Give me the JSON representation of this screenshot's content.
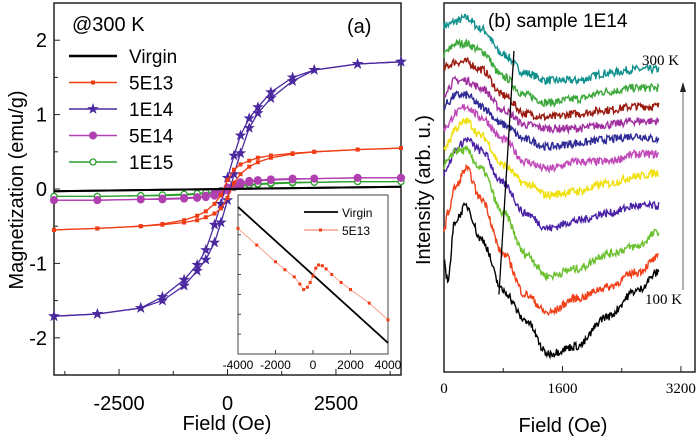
{
  "chart_data": [
    {
      "type": "line",
      "panel_label": "(a)",
      "annotation": "@300 K",
      "xlabel": "Field (Oe)",
      "ylabel": "Magnetization (emu/g)",
      "xlim": [
        -4000,
        4000
      ],
      "ylim": [
        -2.5,
        2.5
      ],
      "xticks": [
        -2500,
        0,
        2500
      ],
      "yticks": [
        -2,
        -1,
        0,
        1,
        2
      ],
      "xtick_labels": [
        "-2500",
        "0",
        "2500"
      ],
      "ytick_labels": [
        "-2",
        "-1",
        "0",
        "1",
        "2"
      ],
      "legend_position": "top-left",
      "x": [
        -4000,
        -3000,
        -2000,
        -1500,
        -1000,
        -700,
        -500,
        -300,
        -150,
        0,
        150,
        300,
        500,
        700,
        1000,
        1500,
        2000,
        3000,
        4000
      ],
      "series": [
        {
          "name": "Virgin",
          "color": "#000000",
          "marker": "none",
          "x": [
            -4000,
            4000
          ],
          "ascending": [
            -0.03,
            0.03
          ],
          "descending": [
            -0.03,
            0.03
          ]
        },
        {
          "name": "5E13",
          "color": "#f03c14",
          "marker": "square",
          "ascending": [
            -0.55,
            -0.53,
            -0.5,
            -0.48,
            -0.45,
            -0.42,
            -0.38,
            -0.33,
            -0.26,
            -0.12,
            0.08,
            0.2,
            0.3,
            0.36,
            0.42,
            0.47,
            0.5,
            0.53,
            0.55
          ],
          "descending": [
            -0.55,
            -0.53,
            -0.5,
            -0.47,
            -0.42,
            -0.36,
            -0.3,
            -0.2,
            -0.08,
            0.12,
            0.26,
            0.33,
            0.38,
            0.42,
            0.45,
            0.48,
            0.5,
            0.53,
            0.55
          ]
        },
        {
          "name": "1E14",
          "color": "#4b2aa0",
          "marker": "star",
          "ascending": [
            -1.71,
            -1.68,
            -1.6,
            -1.5,
            -1.3,
            -1.1,
            -0.95,
            -0.72,
            -0.45,
            -0.15,
            0.2,
            0.48,
            0.82,
            1.02,
            1.22,
            1.45,
            1.6,
            1.68,
            1.71
          ],
          "descending": [
            -1.71,
            -1.68,
            -1.6,
            -1.45,
            -1.22,
            -1.02,
            -0.82,
            -0.48,
            -0.2,
            0.15,
            0.45,
            0.72,
            0.95,
            1.1,
            1.3,
            1.5,
            1.6,
            1.68,
            1.71
          ]
        },
        {
          "name": "5E14",
          "color": "#b040b0",
          "marker": "circle",
          "ascending": [
            -0.15,
            -0.15,
            -0.14,
            -0.14,
            -0.13,
            -0.12,
            -0.11,
            -0.09,
            -0.06,
            -0.02,
            0.03,
            0.06,
            0.09,
            0.11,
            0.12,
            0.13,
            0.14,
            0.15,
            0.15
          ],
          "descending": [
            -0.15,
            -0.15,
            -0.14,
            -0.13,
            -0.12,
            -0.11,
            -0.09,
            -0.06,
            -0.03,
            0.02,
            0.06,
            0.09,
            0.11,
            0.12,
            0.13,
            0.14,
            0.14,
            0.15,
            0.15
          ]
        },
        {
          "name": "1E15",
          "color": "#2ea02e",
          "marker": "open-circle",
          "ascending": [
            -0.1,
            -0.1,
            -0.09,
            -0.09,
            -0.08,
            -0.07,
            -0.06,
            -0.05,
            -0.03,
            -0.01,
            0.02,
            0.04,
            0.05,
            0.06,
            0.07,
            0.08,
            0.09,
            0.1,
            0.1
          ],
          "descending": [
            -0.1,
            -0.1,
            -0.09,
            -0.08,
            -0.07,
            -0.06,
            -0.05,
            -0.04,
            -0.02,
            0.01,
            0.03,
            0.05,
            0.06,
            0.07,
            0.08,
            0.09,
            0.09,
            0.1,
            0.1
          ]
        }
      ],
      "inset": {
        "xlim": [
          -4000,
          4000
        ],
        "xtick_labels": [
          "-4000",
          "-2000",
          "0",
          "2000",
          "4000"
        ],
        "xticks": [
          -4000,
          -2000,
          0,
          2000,
          4000
        ],
        "ylim": [
          -1,
          1
        ],
        "legend_position": "top-right",
        "series": [
          {
            "name": "Virgin",
            "color": "#000000",
            "x": [
              -4000,
              4000
            ],
            "y": [
              0.85,
              -0.86
            ]
          },
          {
            "name": "5E13",
            "color": "#f03c14",
            "x": [
              -4000,
              -3000,
              -2000,
              -1500,
              -1000,
              -700,
              -500,
              -300,
              -150,
              0,
              150,
              300,
              500,
              700,
              1000,
              1500,
              2000,
              3000,
              4000
            ],
            "y": [
              0.58,
              0.37,
              0.16,
              0.06,
              -0.03,
              -0.12,
              -0.19,
              -0.16,
              -0.1,
              -0.02,
              0.08,
              0.12,
              0.11,
              0.07,
              0.0,
              -0.1,
              -0.19,
              -0.36,
              -0.57
            ]
          }
        ]
      }
    },
    {
      "type": "line",
      "title": "(b) sample 1E14",
      "xlabel": "Field (Oe)",
      "ylabel": "Intensity (arb. u.)",
      "xlim": [
        0,
        3390
      ],
      "ylim": [
        0,
        100
      ],
      "xticks": [
        0,
        1600,
        3200
      ],
      "xtick_labels": [
        "0",
        "1600",
        "3200"
      ],
      "annotations": {
        "top": "300 K",
        "bottom": "100 K"
      },
      "guide_line": {
        "x": [
          945,
          742
        ],
        "y": [
          87,
          21
        ]
      },
      "x": [
        0,
        50,
        150,
        300,
        500,
        800,
        1100,
        1400,
        1800,
        2200,
        2600,
        2900
      ],
      "series": [
        {
          "color": "#10908c",
          "values": [
            94,
            94,
            95,
            96,
            93,
            86,
            81,
            79,
            79,
            81,
            82,
            82
          ]
        },
        {
          "color": "#3ca83c",
          "values": [
            86,
            87,
            89,
            89,
            87,
            80,
            75,
            73,
            74,
            76,
            77,
            77
          ]
        },
        {
          "color": "#9a1a10",
          "values": [
            82,
            83,
            84,
            84,
            82,
            75,
            70,
            69,
            70,
            71,
            72,
            72
          ]
        },
        {
          "color": "#a030a0",
          "values": [
            75,
            77,
            79,
            79,
            77,
            71,
            67,
            66,
            66,
            67,
            68,
            68
          ]
        },
        {
          "color": "#2e2a96",
          "values": [
            72,
            73,
            75,
            75,
            72,
            67,
            63,
            61,
            62,
            63,
            64,
            63
          ]
        },
        {
          "color": "#c048b8",
          "values": [
            66,
            67,
            70,
            72,
            69,
            63,
            57,
            55,
            57,
            57,
            59,
            59
          ]
        },
        {
          "color": "#f0e010",
          "values": [
            60,
            62,
            66,
            68,
            64,
            56,
            51,
            48,
            49,
            51,
            53,
            54
          ]
        },
        {
          "color": "#4a22a6",
          "values": [
            54,
            56,
            60,
            63,
            60,
            51,
            43,
            39,
            41,
            43,
            45,
            45
          ]
        },
        {
          "color": "#6cc030",
          "values": [
            56,
            57,
            60,
            60,
            55,
            43,
            32,
            26,
            28,
            32,
            34,
            38
          ]
        },
        {
          "color": "#f0401a",
          "values": [
            38,
            43,
            50,
            55,
            47,
            32,
            21,
            16,
            20,
            23,
            27,
            31
          ]
        },
        {
          "color": "#000000",
          "values": [
            30,
            25,
            41,
            45,
            36,
            22,
            14,
            5,
            7,
            15,
            22,
            27
          ]
        }
      ]
    }
  ]
}
